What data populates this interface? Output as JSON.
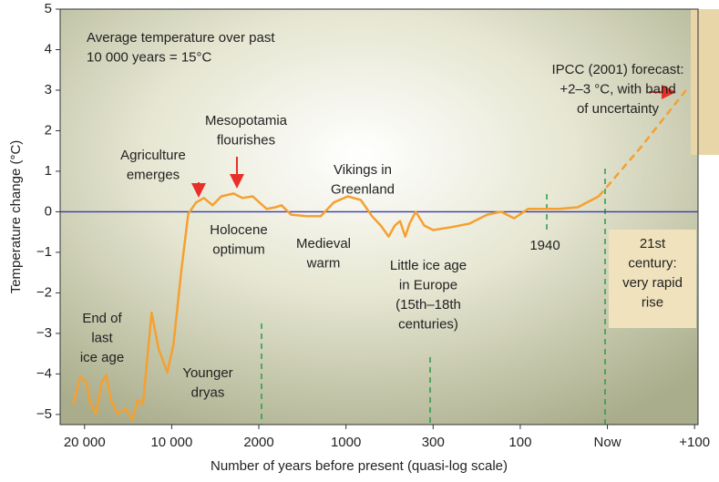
{
  "chart_data": {
    "type": "line",
    "xlabel": "Number of years before present (quasi-log scale)",
    "ylabel": "Temperature change (°C)",
    "xlim": [
      -0.28,
      7.04
    ],
    "xticks": [
      {
        "value": 0,
        "label": "20 000"
      },
      {
        "value": 1,
        "label": "10 000"
      },
      {
        "value": 2,
        "label": "2000"
      },
      {
        "value": 3,
        "label": "1000"
      },
      {
        "value": 4,
        "label": "300"
      },
      {
        "value": 5,
        "label": "100"
      },
      {
        "value": 6,
        "label": "Now"
      },
      {
        "value": 7,
        "label": "+100"
      }
    ],
    "ylim": [
      -5.25,
      5
    ],
    "yticks": [
      5,
      4,
      3,
      2,
      1,
      0,
      {
        "value": -1,
        "label": "−1"
      },
      {
        "value": -2,
        "label": "−2"
      },
      {
        "value": -3,
        "label": "−3"
      },
      {
        "value": -4,
        "label": "−4"
      },
      {
        "value": -5,
        "label": "−5"
      }
    ],
    "series": [
      {
        "color": "#f5a030",
        "dashed": false,
        "x": [
          -0.13,
          -0.05,
          0.02,
          0.07,
          0.13,
          0.2,
          0.25,
          0.3,
          0.38,
          0.47,
          0.55,
          0.61,
          0.67,
          0.77,
          0.85,
          0.95,
          1.02,
          1.11,
          1.19,
          1.28,
          1.37,
          1.47,
          1.57,
          1.71,
          1.81,
          1.93,
          2.09,
          2.19,
          2.26,
          2.37,
          2.55,
          2.71,
          2.86,
          3.02,
          3.17,
          3.3,
          3.4,
          3.49,
          3.56,
          3.62,
          3.68,
          3.73,
          3.8,
          3.9,
          4.0,
          4.21,
          4.42,
          4.62,
          4.78,
          4.93,
          5.09,
          5.24,
          5.45,
          5.66,
          5.9
        ],
        "values": [
          -4.75,
          -4.07,
          -4.19,
          -4.75,
          -4.98,
          -4.19,
          -4.03,
          -4.64,
          -4.98,
          -4.86,
          -5.13,
          -4.64,
          -4.75,
          -2.49,
          -3.39,
          -3.96,
          -3.28,
          -1.47,
          -0.05,
          0.23,
          0.34,
          0.16,
          0.38,
          0.45,
          0.34,
          0.38,
          0.07,
          0.11,
          0.16,
          -0.07,
          -0.11,
          -0.11,
          0.23,
          0.38,
          0.29,
          -0.11,
          -0.34,
          -0.61,
          -0.34,
          -0.23,
          -0.61,
          -0.29,
          0,
          -0.34,
          -0.45,
          -0.38,
          -0.29,
          -0.07,
          0,
          -0.16,
          0.07,
          0.07,
          0.07,
          0.11,
          0.38
        ]
      },
      {
        "color": "#f5a030",
        "dashed": true,
        "x": [
          5.9,
          6.38,
          6.92
        ],
        "values": [
          0.38,
          1.58,
          3.05
        ]
      }
    ],
    "annotations": [
      {
        "text": [
          "Average temperature over past",
          "10 000 years = 15°C"
        ]
      },
      {
        "text": [
          "IPCC (2001) forecast:",
          "+2–3 °C, with band",
          "of uncertainty"
        ]
      },
      {
        "text": [
          "Mesopotamia",
          "flourishes"
        ]
      },
      {
        "text": [
          "Agriculture",
          "emerges"
        ]
      },
      {
        "text": [
          "Vikings in",
          "Greenland"
        ]
      },
      {
        "text": [
          "Holocene",
          "optimum"
        ]
      },
      {
        "text": [
          "Medieval",
          "warm"
        ]
      },
      {
        "text": [
          "Little ice age",
          "in Europe",
          "(15th–18th",
          "centuries)"
        ]
      },
      {
        "text": [
          "1940"
        ]
      },
      {
        "text": [
          "21st",
          "century:",
          "very rapid",
          "rise"
        ]
      },
      {
        "text": [
          "End of",
          "last",
          "ice age"
        ]
      },
      {
        "text": [
          "Younger",
          "dryas"
        ]
      }
    ]
  }
}
